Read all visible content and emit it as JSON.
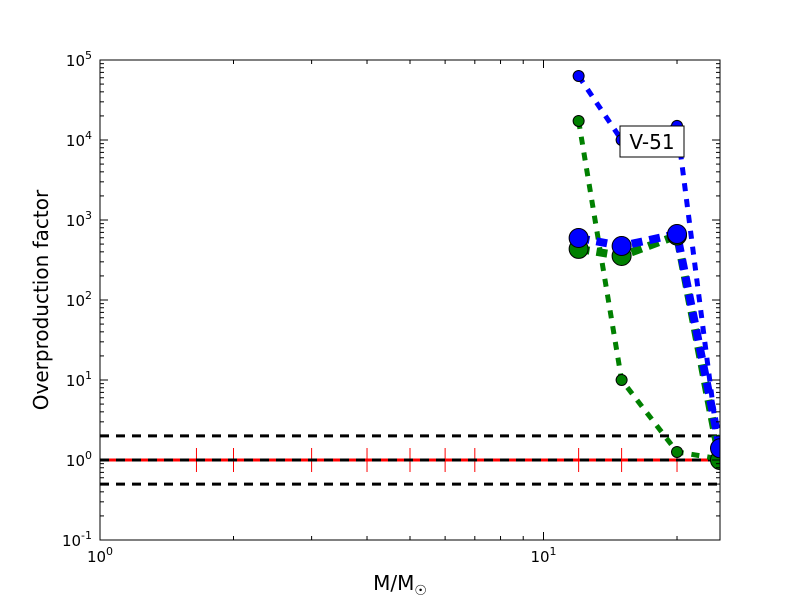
{
  "chart_data": {
    "type": "line",
    "title": "",
    "xlabel": "M/M",
    "xlabel_symbol": "☉",
    "ylabel": "Overproduction factor",
    "xscale": "log",
    "yscale": "log",
    "xlim": [
      1,
      25
    ],
    "ylim": [
      0.1,
      100000
    ],
    "x_ticks": [
      {
        "value": 1,
        "base": "10",
        "exp": "0"
      },
      {
        "value": 10,
        "base": "10",
        "exp": "1"
      }
    ],
    "y_ticks": [
      {
        "value": 0.1,
        "base": "10",
        "exp": "-1"
      },
      {
        "value": 1,
        "base": "10",
        "exp": "0"
      },
      {
        "value": 10,
        "base": "10",
        "exp": "1"
      },
      {
        "value": 100,
        "base": "10",
        "exp": "2"
      },
      {
        "value": 1000,
        "base": "10",
        "exp": "3"
      },
      {
        "value": 10000,
        "base": "10",
        "exp": "4"
      },
      {
        "value": 100000,
        "base": "10",
        "exp": "5"
      }
    ],
    "annotation": "V-51",
    "reference_lines": [
      {
        "y": 2,
        "color": "#000000",
        "style": "dashed"
      },
      {
        "y": 1,
        "color": "#000000",
        "style": "dashed"
      },
      {
        "y": 0.5,
        "color": "#000000",
        "style": "dashed"
      }
    ],
    "red_line": {
      "y": 1,
      "color": "#ff0000",
      "marker_x": [
        1.65,
        2,
        3,
        4,
        5,
        6,
        7,
        12,
        15,
        20,
        25
      ]
    },
    "series": [
      {
        "name": "blue-small",
        "color": "#0000ff",
        "marker": "small",
        "x": [
          12,
          15,
          20,
          25
        ],
        "y": [
          63000,
          10000,
          15000,
          1.0
        ]
      },
      {
        "name": "green-small",
        "color": "#008000",
        "marker": "small",
        "x": [
          12,
          15,
          20,
          25
        ],
        "y": [
          17300,
          10,
          1.26,
          1.03
        ]
      },
      {
        "name": "green-large",
        "color": "#008000",
        "marker": "large",
        "x": [
          12,
          15,
          20,
          25
        ],
        "y": [
          435,
          355,
          640,
          1.0
        ]
      },
      {
        "name": "blue-large",
        "color": "#0000ff",
        "marker": "large",
        "x": [
          12,
          15,
          20,
          25
        ],
        "y": [
          596,
          473,
          668,
          1.4
        ]
      }
    ]
  }
}
